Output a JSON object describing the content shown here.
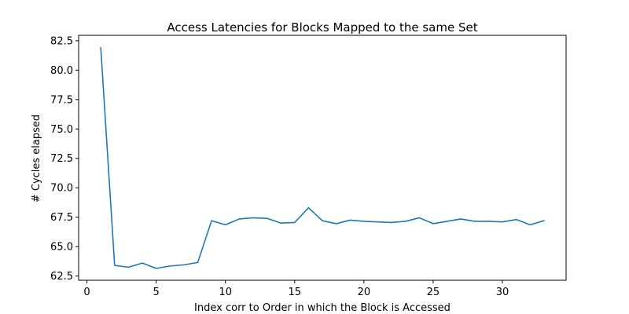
{
  "chart_data": {
    "type": "line",
    "title": "Access Latencies for Blocks Mapped to the same Set",
    "xlabel": "Index corr to Order in which the Block is Accessed",
    "ylabel": "# Cycles elapsed",
    "xlim": [
      -0.6,
      34.6
    ],
    "ylim": [
      62.14,
      82.96
    ],
    "xticks": [
      0,
      5,
      10,
      15,
      20,
      25,
      30
    ],
    "xtick_labels": [
      "0",
      "5",
      "10",
      "15",
      "20",
      "25",
      "30"
    ],
    "yticks": [
      62.5,
      65.0,
      67.5,
      70.0,
      72.5,
      75.0,
      77.5,
      80.0,
      82.5
    ],
    "ytick_labels": [
      "62.5",
      "65.0",
      "67.5",
      "70.0",
      "72.5",
      "75.0",
      "77.5",
      "80.0",
      "82.5"
    ],
    "grid": false,
    "series": [
      {
        "color": "#1f77b4",
        "x": [
          1,
          2,
          3,
          4,
          5,
          6,
          7,
          8,
          9,
          10,
          11,
          12,
          13,
          14,
          15,
          16,
          17,
          18,
          19,
          20,
          21,
          22,
          23,
          24,
          25,
          26,
          27,
          28,
          29,
          30,
          31,
          32,
          33
        ],
        "y": [
          81.9,
          63.4,
          63.25,
          63.6,
          63.15,
          63.35,
          63.45,
          63.65,
          67.2,
          66.85,
          67.35,
          67.45,
          67.4,
          67.0,
          67.05,
          68.3,
          67.2,
          66.95,
          67.25,
          67.15,
          67.1,
          67.05,
          67.15,
          67.45,
          66.95,
          67.15,
          67.35,
          67.15,
          67.15,
          67.1,
          67.3,
          66.85,
          67.2
        ]
      }
    ]
  }
}
